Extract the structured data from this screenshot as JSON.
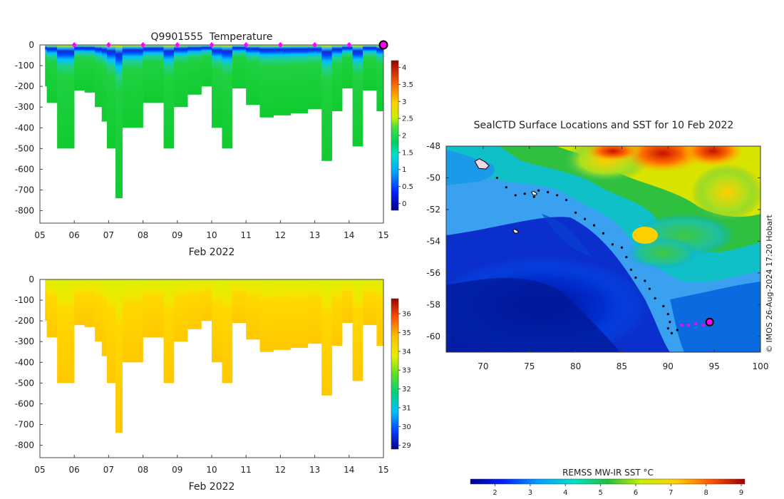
{
  "chart_data": [
    {
      "type": "heatmap",
      "id": "temperature",
      "title": "Q9901555  Temperature",
      "xlabel": "Feb 2022",
      "xticks": [
        "05",
        "06",
        "07",
        "08",
        "09",
        "10",
        "11",
        "12",
        "13",
        "14",
        "15"
      ],
      "xlim": [
        5,
        15
      ],
      "ylim": [
        -860,
        0
      ],
      "yticks": [
        "0",
        "-100",
        "-200",
        "-300",
        "-400",
        "-500",
        "-600",
        "-700",
        "-800"
      ],
      "colorbar": {
        "ticks": [
          "0",
          "0.5",
          "1",
          "1.5",
          "2",
          "2.5",
          "3",
          "3.5",
          "4"
        ],
        "range": [
          -0.2,
          4.2
        ]
      },
      "surface_marker_days": [
        6,
        7,
        8,
        9,
        10,
        11,
        12,
        13,
        14
      ],
      "current_marker_day": 15,
      "profiles": [
        {
          "day": 5.2,
          "depth": 280
        },
        {
          "day": 5.5,
          "depth": 500
        },
        {
          "day": 6.0,
          "depth": 220
        },
        {
          "day": 6.3,
          "depth": 230
        },
        {
          "day": 6.6,
          "depth": 300
        },
        {
          "day": 6.8,
          "depth": 370
        },
        {
          "day": 6.95,
          "depth": 500
        },
        {
          "day": 7.2,
          "depth": 740
        },
        {
          "day": 7.4,
          "depth": 400
        },
        {
          "day": 7.7,
          "depth": 400
        },
        {
          "day": 8.0,
          "depth": 280
        },
        {
          "day": 8.3,
          "depth": 280
        },
        {
          "day": 8.6,
          "depth": 500
        },
        {
          "day": 8.9,
          "depth": 300
        },
        {
          "day": 9.3,
          "depth": 240
        },
        {
          "day": 9.7,
          "depth": 200
        },
        {
          "day": 10.0,
          "depth": 400
        },
        {
          "day": 10.3,
          "depth": 500
        },
        {
          "day": 10.6,
          "depth": 210
        },
        {
          "day": 11.0,
          "depth": 290
        },
        {
          "day": 11.4,
          "depth": 350
        },
        {
          "day": 11.8,
          "depth": 340
        },
        {
          "day": 12.3,
          "depth": 330
        },
        {
          "day": 12.8,
          "depth": 310
        },
        {
          "day": 13.2,
          "depth": 560
        },
        {
          "day": 13.5,
          "depth": 320
        },
        {
          "day": 13.8,
          "depth": 210
        },
        {
          "day": 14.1,
          "depth": 490
        },
        {
          "day": 14.4,
          "depth": 220
        },
        {
          "day": 14.8,
          "depth": 320
        }
      ]
    },
    {
      "type": "heatmap",
      "id": "salinity",
      "title": "",
      "xlabel": "Feb 2022",
      "xticks": [
        "05",
        "06",
        "07",
        "08",
        "09",
        "10",
        "11",
        "12",
        "13",
        "14",
        "15"
      ],
      "xlim": [
        5,
        15
      ],
      "ylim": [
        -860,
        0
      ],
      "yticks": [
        "0",
        "-100",
        "-200",
        "-300",
        "-400",
        "-500",
        "-600",
        "-700",
        "-800"
      ],
      "colorbar": {
        "ticks": [
          "29",
          "30",
          "31",
          "32",
          "33",
          "34",
          "35",
          "36"
        ],
        "range": [
          28.8,
          36.8
        ]
      }
    },
    {
      "type": "map",
      "id": "sst_map",
      "title": "SealCTD Surface Locations and SST for 10 Feb 2022",
      "xlim": [
        66,
        100
      ],
      "ylim": [
        -61,
        -48
      ],
      "xticks": [
        "70",
        "75",
        "80",
        "85",
        "90",
        "95",
        "100"
      ],
      "yticks": [
        "-48",
        "-50",
        "-52",
        "-54",
        "-56",
        "-58",
        "-60"
      ],
      "colorbar": {
        "label": "REMSS MW-IR SST °C",
        "ticks": [
          "2",
          "3",
          "4",
          "5",
          "6",
          "7",
          "8",
          "9"
        ],
        "range": [
          1.3,
          9.1
        ]
      },
      "credit": "© IMOS 26-Aug-2024 17:20 Hobart",
      "track": [
        [
          71.5,
          -50.0
        ],
        [
          72.5,
          -50.6
        ],
        [
          73.5,
          -51.1
        ],
        [
          74.5,
          -51.0
        ],
        [
          75.5,
          -51.2
        ],
        [
          76.0,
          -50.8
        ],
        [
          77.0,
          -50.9
        ],
        [
          78.0,
          -51.1
        ],
        [
          79.0,
          -51.4
        ],
        [
          80.0,
          -52.2
        ],
        [
          81.0,
          -52.6
        ],
        [
          82.0,
          -53.0
        ],
        [
          83.0,
          -53.5
        ],
        [
          84.0,
          -54.2
        ],
        [
          85.0,
          -54.4
        ],
        [
          85.5,
          -55.0
        ],
        [
          86.0,
          -55.8
        ],
        [
          86.5,
          -56.3
        ],
        [
          87.5,
          -56.5
        ],
        [
          88.0,
          -57.0
        ],
        [
          88.6,
          -57.6
        ],
        [
          89.5,
          -58.1
        ],
        [
          90.0,
          -58.6
        ],
        [
          90.2,
          -59.1
        ],
        [
          90.0,
          -59.5
        ],
        [
          90.4,
          -59.8
        ],
        [
          91.0,
          -59.6
        ],
        [
          91.5,
          -59.3
        ]
      ],
      "recent_track": [
        [
          91.5,
          -59.3
        ],
        [
          92.2,
          -59.3
        ],
        [
          93.0,
          -59.2
        ],
        [
          93.8,
          -59.3
        ],
        [
          94.5,
          -59.1
        ]
      ],
      "current_location": [
        94.5,
        -59.1
      ],
      "land_labels": [
        [
          69.8,
          -49.2
        ],
        [
          75.5,
          -51.0
        ],
        [
          73.5,
          -53.4
        ]
      ]
    }
  ]
}
